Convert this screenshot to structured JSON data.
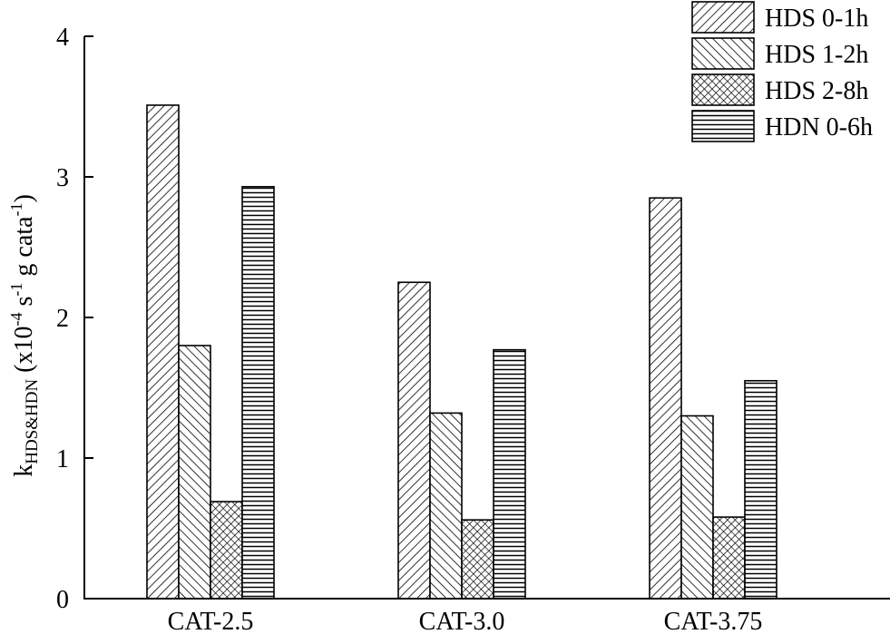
{
  "chart_data": {
    "type": "bar",
    "categories": [
      "CAT-2.5",
      "CAT-3.0",
      "CAT-3.75"
    ],
    "series": [
      {
        "name": "HDS 0-1h",
        "values": [
          3.51,
          2.25,
          2.85
        ],
        "pattern": "diag-right"
      },
      {
        "name": "HDS 1-2h",
        "values": [
          1.8,
          1.32,
          1.3
        ],
        "pattern": "diag-left"
      },
      {
        "name": "HDS 2-8h",
        "values": [
          0.69,
          0.56,
          0.58
        ],
        "pattern": "crosshatch"
      },
      {
        "name": "HDN 0-6h",
        "values": [
          2.93,
          1.77,
          1.55
        ],
        "pattern": "horizontal"
      }
    ],
    "ylim": [
      0,
      4
    ],
    "yticks": [
      "0",
      "1",
      "2",
      "3",
      "4"
    ],
    "ylabel": {
      "main": "k",
      "sub": "HDS&HDN",
      "paren_open": " (x10",
      "exp1": "-4",
      "s": " s",
      "exp2": "-1",
      "g": " g cata",
      "exp3": "-1",
      "paren_close": ")"
    },
    "xlabel": "",
    "legend_position": "top-right",
    "grid": false
  }
}
